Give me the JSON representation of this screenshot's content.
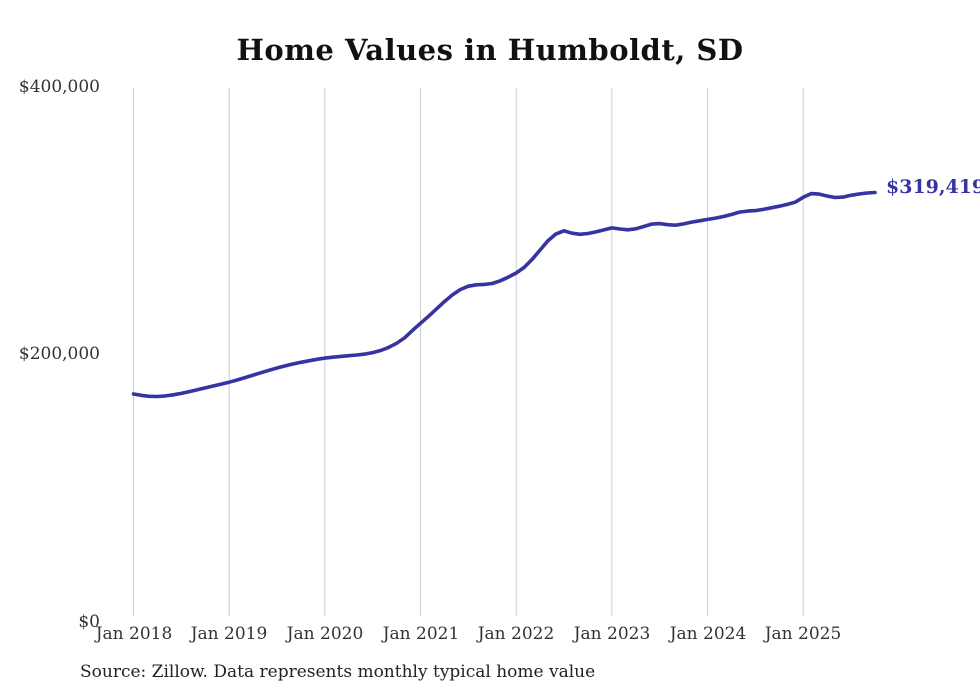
{
  "page": {
    "title": "Home Values in Humboldt, SD",
    "source_note": "Source: Zillow. Data represents monthly typical home value"
  },
  "annotation": {
    "latest_value_label": "$319,419"
  },
  "colors": {
    "line": "#3534a2",
    "grid": "#cccccc",
    "axis_text": "#333333",
    "title_text": "#111111"
  },
  "chart_data": {
    "type": "line",
    "title": "Home Values in Humboldt, SD",
    "xlabel": "",
    "ylabel": "",
    "x_start": "2018-01",
    "x_end": "2025-10",
    "x_interval": "monthly",
    "xtick_labels": [
      "Jan 2018",
      "Jan 2019",
      "Jan 2020",
      "Jan 2021",
      "Jan 2022",
      "Jan 2023",
      "Jan 2024",
      "Jan 2025"
    ],
    "ytick_labels": [
      "$400,000",
      "$200,000",
      "$0"
    ],
    "yticks": [
      400000,
      200000,
      0
    ],
    "ylim": [
      0,
      400000
    ],
    "grid": "vertical-only",
    "legend": "none",
    "final_value": 319419,
    "series": [
      {
        "name": "Monthly typical home value",
        "values": [
          169000,
          168000,
          167300,
          167200,
          167600,
          168400,
          169500,
          170800,
          172200,
          173600,
          175000,
          176400,
          177800,
          179500,
          181300,
          183100,
          184900,
          186700,
          188400,
          190000,
          191400,
          192700,
          193800,
          194900,
          195800,
          196500,
          197100,
          197600,
          198100,
          198800,
          199900,
          201500,
          203800,
          206900,
          211000,
          216500,
          221800,
          227000,
          232500,
          238000,
          243000,
          247000,
          249500,
          250500,
          250800,
          251500,
          253500,
          256200,
          259300,
          263500,
          269500,
          276500,
          283500,
          288500,
          290800,
          289000,
          288200,
          288800,
          290000,
          291500,
          293000,
          292200,
          291600,
          292300,
          294000,
          295800,
          296200,
          295400,
          295000,
          296000,
          297300,
          298300,
          299300,
          300300,
          301500,
          303000,
          304800,
          305500,
          305900,
          306800,
          308000,
          309200,
          310500,
          312200,
          315800,
          318600,
          318200,
          316800,
          315700,
          316000,
          317300,
          318300,
          319000,
          319419
        ]
      }
    ]
  }
}
